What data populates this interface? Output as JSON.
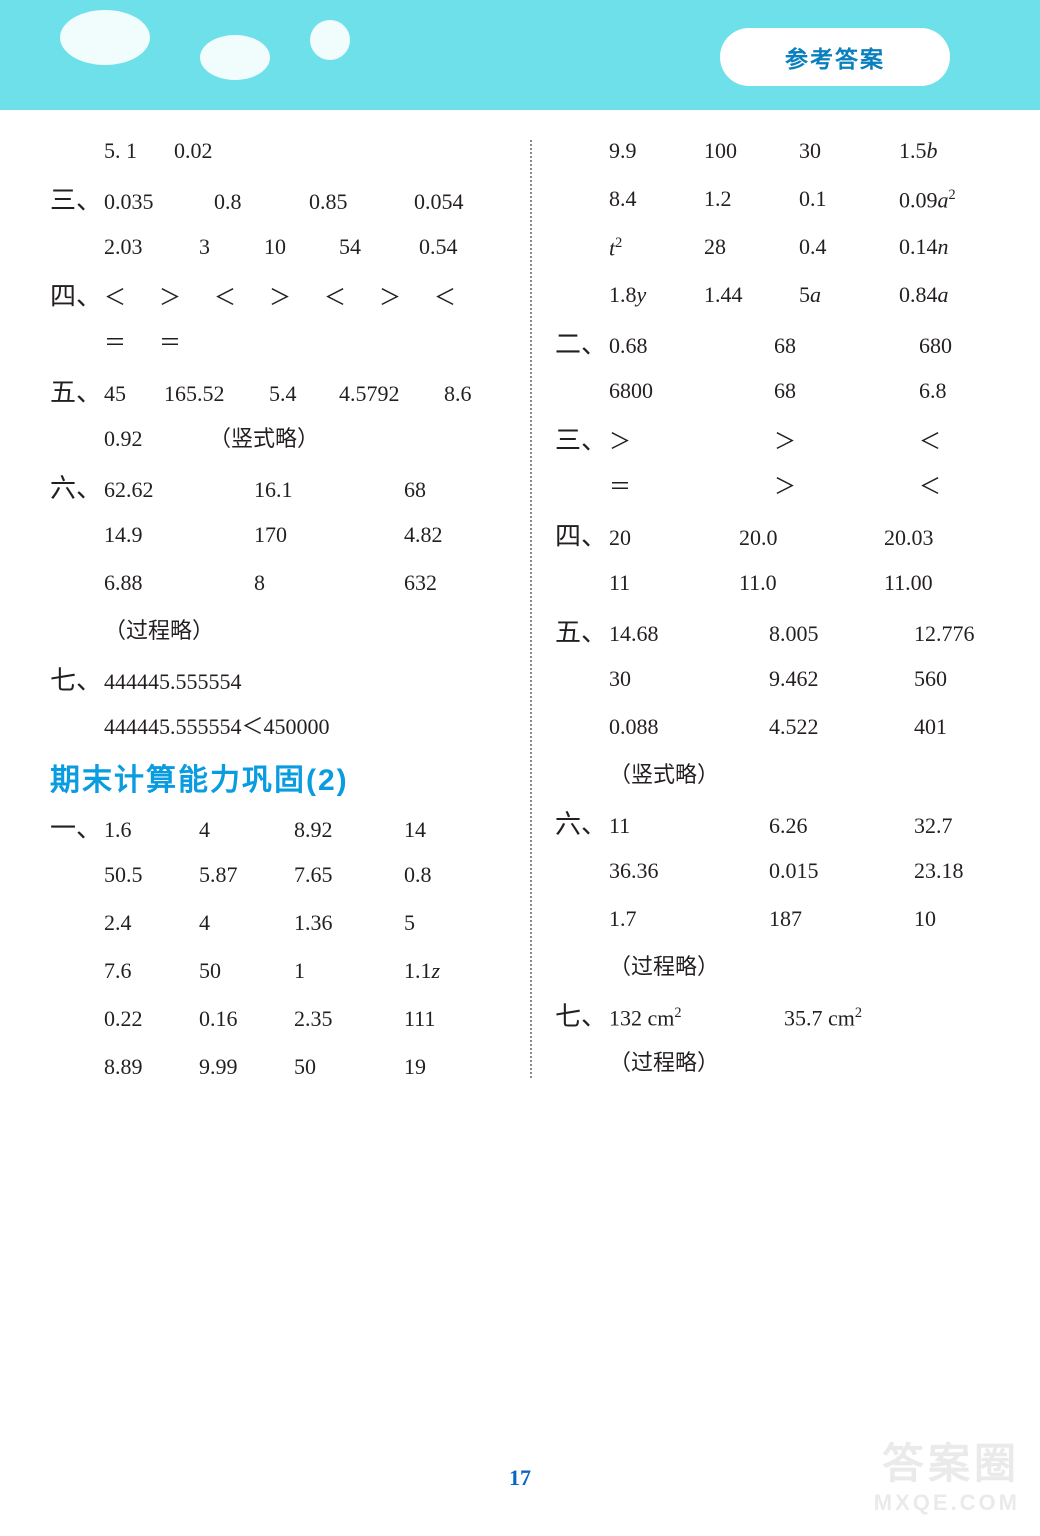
{
  "banner": {
    "bg_color": "#6ee0ea",
    "title": "参考答案",
    "title_color": "#0a7fbe"
  },
  "page_number": "17",
  "page_number_color": "#0a66c4",
  "section_title": "期末计算能力巩固(2)",
  "section_title_color": "#0a9ce0",
  "watermark": {
    "line1": "答案圈",
    "line2": "MXQE.COM",
    "color": "#b0b0b0"
  },
  "left": [
    {
      "label": "",
      "indent": true,
      "cells": [
        "5. 1",
        "0.02"
      ],
      "widths": [
        70,
        80
      ]
    },
    {
      "label": "三、",
      "cells": [
        "0.035",
        "0.8",
        "0.85",
        "0.054"
      ],
      "widths": [
        110,
        95,
        105,
        90
      ]
    },
    {
      "label": "",
      "indent": true,
      "cells": [
        "2.03",
        "3",
        "10",
        "54",
        "0.54"
      ],
      "widths": [
        95,
        65,
        75,
        80,
        80
      ]
    },
    {
      "label": "四、",
      "cells": [
        "＜",
        "＞",
        "＜",
        "＞",
        "＜",
        "＞",
        "＜"
      ],
      "widths": [
        55,
        55,
        55,
        55,
        55,
        55,
        55
      ]
    },
    {
      "label": "",
      "indent": true,
      "cells": [
        "＝",
        "＝"
      ],
      "widths": [
        55,
        55
      ]
    },
    {
      "label": "五、",
      "cells": [
        "45",
        "165.52",
        "5.4",
        "4.5792",
        "8.6"
      ],
      "widths": [
        60,
        105,
        70,
        105,
        60
      ]
    },
    {
      "label": "",
      "indent": true,
      "cells": [
        "0.92",
        "（竖式略）"
      ],
      "widths": [
        105,
        200
      ]
    },
    {
      "label": "六、",
      "cells": [
        "62.62",
        "16.1",
        "68"
      ],
      "widths": [
        150,
        150,
        100
      ]
    },
    {
      "label": "",
      "indent": true,
      "cells": [
        "14.9",
        "170",
        "4.82"
      ],
      "widths": [
        150,
        150,
        100
      ]
    },
    {
      "label": "",
      "indent": true,
      "cells": [
        "6.88",
        "8",
        "632"
      ],
      "widths": [
        150,
        150,
        100
      ]
    },
    {
      "label": "",
      "indent": true,
      "cells": [
        "（过程略）"
      ],
      "widths": [
        300
      ]
    },
    {
      "label": "七、",
      "cells": [
        "444445.555554"
      ],
      "widths": [
        400
      ]
    },
    {
      "label": "",
      "indent": true,
      "cells": [
        "444445.555554＜450000"
      ],
      "widths": [
        400
      ]
    },
    {
      "type": "title"
    },
    {
      "label": "一、",
      "cells": [
        "1.6",
        "4",
        "8.92",
        "14"
      ],
      "widths": [
        95,
        95,
        110,
        90
      ]
    },
    {
      "label": "",
      "indent": true,
      "cells": [
        "50.5",
        "5.87",
        "7.65",
        "0.8"
      ],
      "widths": [
        95,
        95,
        110,
        90
      ]
    },
    {
      "label": "",
      "indent": true,
      "cells": [
        "2.4",
        "4",
        "1.36",
        "5"
      ],
      "widths": [
        95,
        95,
        110,
        90
      ]
    },
    {
      "label": "",
      "indent": true,
      "cells": [
        "7.6",
        "50",
        "1",
        "1.1<i class='var'>z</i>"
      ],
      "widths": [
        95,
        95,
        110,
        90
      ],
      "html": true
    },
    {
      "label": "",
      "indent": true,
      "cells": [
        "0.22",
        "0.16",
        "2.35",
        "111"
      ],
      "widths": [
        95,
        95,
        110,
        90
      ]
    },
    {
      "label": "",
      "indent": true,
      "cells": [
        "8.89",
        "9.99",
        "50",
        "19"
      ],
      "widths": [
        95,
        95,
        110,
        90
      ]
    }
  ],
  "right": [
    {
      "label": "",
      "indent": true,
      "cells": [
        "9.9",
        "100",
        "30",
        "1.5<i class='var'>b</i>"
      ],
      "widths": [
        95,
        95,
        100,
        110
      ],
      "html": true
    },
    {
      "label": "",
      "indent": true,
      "cells": [
        "8.4",
        "1.2",
        "0.1",
        "0.09<i class='var'>a</i><sup>2</sup>"
      ],
      "widths": [
        95,
        95,
        100,
        110
      ],
      "html": true
    },
    {
      "label": "",
      "indent": true,
      "cells": [
        "<i class='var'>t</i><sup>2</sup>",
        "28",
        "0.4",
        "0.14<i class='var'>n</i>"
      ],
      "widths": [
        95,
        95,
        100,
        110
      ],
      "html": true
    },
    {
      "label": "",
      "indent": true,
      "cells": [
        "1.8<i class='var'>y</i>",
        "1.44",
        "5<i class='var'>a</i>",
        "0.84<i class='var'>a</i>"
      ],
      "widths": [
        95,
        95,
        100,
        110
      ],
      "html": true
    },
    {
      "label": "二、",
      "cells": [
        "0.68",
        "68",
        "680"
      ],
      "widths": [
        165,
        145,
        100
      ]
    },
    {
      "label": "",
      "indent": true,
      "cells": [
        "6800",
        "68",
        "6.8"
      ],
      "widths": [
        165,
        145,
        100
      ]
    },
    {
      "label": "三、",
      "cells": [
        "＞",
        "＞",
        "＜"
      ],
      "widths": [
        165,
        145,
        100
      ]
    },
    {
      "label": "",
      "indent": true,
      "cells": [
        "＝",
        "＞",
        "＜"
      ],
      "widths": [
        165,
        145,
        100
      ]
    },
    {
      "label": "四、",
      "cells": [
        "20",
        "20.0",
        "20.03"
      ],
      "widths": [
        130,
        145,
        120
      ]
    },
    {
      "label": "",
      "indent": true,
      "cells": [
        "11",
        "11.0",
        "11.00"
      ],
      "widths": [
        130,
        145,
        120
      ]
    },
    {
      "label": "五、",
      "cells": [
        "14.68",
        "8.005",
        "12.776"
      ],
      "widths": [
        160,
        145,
        110
      ]
    },
    {
      "label": "",
      "indent": true,
      "cells": [
        "30",
        "9.462",
        "560"
      ],
      "widths": [
        160,
        145,
        110
      ]
    },
    {
      "label": "",
      "indent": true,
      "cells": [
        "0.088",
        "4.522",
        "401"
      ],
      "widths": [
        160,
        145,
        110
      ]
    },
    {
      "label": "",
      "indent": true,
      "cells": [
        "（竖式略）"
      ],
      "widths": [
        300
      ]
    },
    {
      "label": "六、",
      "cells": [
        "11",
        "6.26",
        "32.7"
      ],
      "widths": [
        160,
        145,
        110
      ]
    },
    {
      "label": "",
      "indent": true,
      "cells": [
        "36.36",
        "0.015",
        "23.18"
      ],
      "widths": [
        160,
        145,
        110
      ]
    },
    {
      "label": "",
      "indent": true,
      "cells": [
        "1.7",
        "187",
        "10"
      ],
      "widths": [
        160,
        145,
        110
      ]
    },
    {
      "label": "",
      "indent": true,
      "cells": [
        "（过程略）"
      ],
      "widths": [
        300
      ]
    },
    {
      "label": "七、",
      "cells": [
        "132 cm<sup>2</sup>",
        "35.7 cm<sup>2</sup>"
      ],
      "widths": [
        175,
        180
      ],
      "html": true
    },
    {
      "label": "",
      "indent": true,
      "cells": [
        "（过程略）"
      ],
      "widths": [
        300
      ]
    }
  ]
}
